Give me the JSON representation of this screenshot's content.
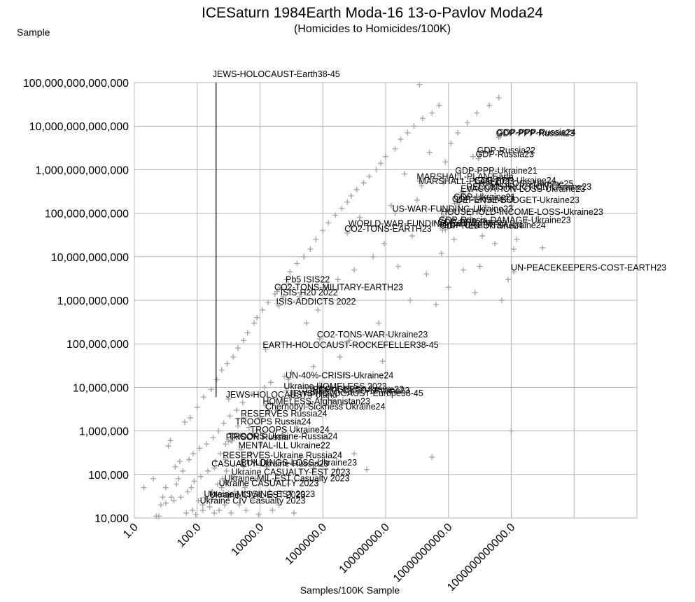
{
  "chart_data": {
    "type": "scatter",
    "title": "ICESaturn 1984Earth Moda-16 13-o-Pavlov Moda24",
    "subtitle": "(Homicides to Homicides/100K)",
    "ylabel": "Sample",
    "xlabel": "Samples/100K Sample",
    "x_scale": "log",
    "y_scale": "log",
    "xlim": [
      1,
      1e+16
    ],
    "ylim": [
      10000.0,
      100000000000000.0
    ],
    "x_tick_labels": [
      "1.0",
      "100.0",
      "10000.0",
      "1000000.0",
      "100000000.0",
      "10000000000.0",
      "1000000000000.0"
    ],
    "x_tick_values": [
      1,
      100,
      10000,
      1000000,
      100000000,
      10000000000,
      1000000000000
    ],
    "y_tick_labels": [
      "10,000",
      "100,000",
      "1,000,000",
      "10,000,000",
      "100,000,000",
      "1,000,000,000",
      "10,000,000,000",
      "100,000,000,000",
      "1,000,000,000,000",
      "10,000,000,000,000",
      "100,000,000,000,000"
    ],
    "y_tick_values": [
      10000.0,
      100000.0,
      1000000.0,
      10000000.0,
      100000000.0,
      1000000000.0,
      10000000000.0,
      100000000000.0,
      1000000000000.0,
      10000000000000.0,
      100000000000000.0
    ],
    "grid": true,
    "marker": "plus",
    "marker_color": "#a6a6a6",
    "annotation_line": {
      "label": "JEWS-HOLOCAUST-Earth38-45",
      "x": 400,
      "y_from": 6000000,
      "y_to": 100000000000000
    },
    "labeled_points": [
      {
        "label": "GDP-PPP-Russia23",
        "x": 400000000000.0,
        "y": 5500000000000.0
      },
      {
        "label": "GDP-PPP-Russia24",
        "x": 430000000000.0,
        "y": 5800000000000.0
      },
      {
        "label": "GDP-Russia22",
        "x": 100000000000.0,
        "y": 2200000000000.0
      },
      {
        "label": "GDP-Russia23",
        "x": 90000000000.0,
        "y": 1800000000000.0
      },
      {
        "label": "GDP-PPP-Ukraine21",
        "x": 20000000000.0,
        "y": 750000000000.0
      },
      {
        "label": "MARSHALL-PLAN-Earth",
        "x": 1200000000.0,
        "y": 550000000000.0
      },
      {
        "label": "MARSHALL-PLAN-2023",
        "x": 1400000000.0,
        "y": 430000000000.0
      },
      {
        "label": "GDP-PPP-Ukraine24",
        "x": 80000000000.0,
        "y": 450000000000.0
      },
      {
        "label": "TOTAL-LOSS-Ukraine25",
        "x": 100000000000.0,
        "y": 380000000000.0
      },
      {
        "label": "RECONSTRUCTION-Ukraine23",
        "x": 45000000000.0,
        "y": 320000000000.0
      },
      {
        "label": "EVACUATION-LOSS-Ukraine23",
        "x": 30000000000.0,
        "y": 290000000000.0
      },
      {
        "label": "GDP-Ukraine21",
        "x": 18000000000.0,
        "y": 190000000000.0
      },
      {
        "label": "GDP-Ukraine23",
        "x": 16000000000.0,
        "y": 170000000000.0
      },
      {
        "label": "DEFENSE-BUDGET-Ukraine23",
        "x": 22000000000.0,
        "y": 160000000000.0
      },
      {
        "label": "US-WAR-FUNDING-Ukraine23",
        "x": 200000000.0,
        "y": 100000000000.0
      },
      {
        "label": "HOUSEHOLD-INCOME-LOSS-Ukraine23",
        "x": 7000000000.0,
        "y": 85000000000.0
      },
      {
        "label": "GDP-Russia-DAMAGE-Ukraine23",
        "x": 6000000000.0,
        "y": 55000000000.0
      },
      {
        "label": "GDP-PPP-Russia",
        "x": 5500000000.0,
        "y": 50000000000.0
      },
      {
        "label": "WORLD-WAR-FUNDING-Earth42-45",
        "x": 8000000.0,
        "y": 46000000000.0
      },
      {
        "label": "GDP-CREDITS-Ukraine24",
        "x": 8000000000.0,
        "y": 42000000000.0
      },
      {
        "label": "GDP-RED-Ukraine24",
        "x": 6500000000.0,
        "y": 41000000000.0
      },
      {
        "label": "CO2-TONS-EARTH23",
        "x": 6000000.0,
        "y": 35000000000.0
      },
      {
        "label": "UN-PEACEKEEPERS-COST-EARTH23",
        "x": 1200000000000.0,
        "y": 4500000000.0
      },
      {
        "label": "Pb5 ISIS22",
        "x": 80000.0,
        "y": 2400000000.0
      },
      {
        "label": "CO2-TONS-MILITARY-EARTH23",
        "x": 35000.0,
        "y": 1600000000.0
      },
      {
        "label": "ISIS-H20 2022",
        "x": 55000.0,
        "y": 1200000000.0
      },
      {
        "label": "ISIS-ADDICTS 2022",
        "x": 40000.0,
        "y": 750000000.0
      },
      {
        "label": "CO2-TONS-WAR-Ukraine23",
        "x": 800000.0,
        "y": 130000000.0
      },
      {
        "label": "EARTH-HOLOCAUST-ROCKEFELLER38-45",
        "x": 15000.0,
        "y": 75000000.0
      },
      {
        "label": "UN-40%-CRISIS-Ukraine24",
        "x": 80000.0,
        "y": 15000000.0
      },
      {
        "label": "Ukraine HOMELESS 2023",
        "x": 70000.0,
        "y": 8500000.0
      },
      {
        "label": "JEWS-HOLOCAUST-Europe38-45",
        "x": 100000.0,
        "y": 5800000.0
      },
      {
        "label": "REFUGEES-Ukraine22",
        "x": 600000.0,
        "y": 7200000.0
      },
      {
        "label": "UNEMPLOYED-Ukraine23",
        "x": 350000.0,
        "y": 6800000.0
      },
      {
        "label": "JEWS-HOLOCAUST-Poland",
        "x": 1000.0,
        "y": 5400000.0
      },
      {
        "label": "HOMELESS-Afghanistan23",
        "x": 15000.0,
        "y": 3800000.0
      },
      {
        "label": "Chernobyl-Sickness Ukraine24",
        "x": 18000.0,
        "y": 2900000.0
      },
      {
        "label": "RESERVES Russia24",
        "x": 3000.0,
        "y": 2000000.0
      },
      {
        "label": "TROOPS Russia24",
        "x": 2000.0,
        "y": 1300000.0
      },
      {
        "label": "TROOPS Ukraine24",
        "x": 6000.0,
        "y": 850000.0
      },
      {
        "label": "PRISON Russia",
        "x": 1000.0,
        "y": 580000.0
      },
      {
        "label": "TROOPS-Ukraine-Russia24",
        "x": 1200.0,
        "y": 600000.0
      },
      {
        "label": "MENTAL-ILL Ukraine22",
        "x": 2500.0,
        "y": 370000.0
      },
      {
        "label": "RESERVES-Ukraine Russia24",
        "x": 800.0,
        "y": 220000.0
      },
      {
        "label": "CASUALTY-Ukraine-Russia23",
        "x": 350.0,
        "y": 140000.0
      },
      {
        "label": "BUILDINGS-LOSS-Ukraine23",
        "x": 3000.0,
        "y": 150000.0
      },
      {
        "label": "Ukraine CASUALTY-EST 2023",
        "x": 1500.0,
        "y": 90000.0
      },
      {
        "label": "Ukraine MIL-EST Casualty 2023",
        "x": 900.0,
        "y": 65000.0
      },
      {
        "label": "Ukraine CASUALTY 2023",
        "x": 600.0,
        "y": 50000.0
      },
      {
        "label": "Ukraine MISSING-EST 2023",
        "x": 200.0,
        "y": 28000.0
      },
      {
        "label": "Ukraine CIVIL-EST 2023",
        "x": 300.0,
        "y": 27000.0
      },
      {
        "label": "Ukraine CIV Casualty 2023",
        "x": 150.0,
        "y": 20000.0
      }
    ],
    "unlabeled_points": [
      {
        "x": 2,
        "y": 50000.0
      },
      {
        "x": 4,
        "y": 80000.0
      },
      {
        "x": 5,
        "y": 11000.0
      },
      {
        "x": 6,
        "y": 11000.0
      },
      {
        "x": 7,
        "y": 20000.0
      },
      {
        "x": 8,
        "y": 30000.0
      },
      {
        "x": 10,
        "y": 50000.0
      },
      {
        "x": 10,
        "y": 22000.0
      },
      {
        "x": 12,
        "y": 450000.0
      },
      {
        "x": 14,
        "y": 600000.0
      },
      {
        "x": 15,
        "y": 30000.0
      },
      {
        "x": 18,
        "y": 25000.0
      },
      {
        "x": 20,
        "y": 150000.0
      },
      {
        "x": 22,
        "y": 60000.0
      },
      {
        "x": 25,
        "y": 80000.0
      },
      {
        "x": 28,
        "y": 200000.0
      },
      {
        "x": 30,
        "y": 30000.0
      },
      {
        "x": 35,
        "y": 120000.0
      },
      {
        "x": 40,
        "y": 1600000.0
      },
      {
        "x": 45,
        "y": 13000.0
      },
      {
        "x": 50,
        "y": 40000.0
      },
      {
        "x": 55,
        "y": 220000.0
      },
      {
        "x": 60,
        "y": 2000000.0
      },
      {
        "x": 65,
        "y": 50000.0
      },
      {
        "x": 70,
        "y": 15000.0
      },
      {
        "x": 75,
        "y": 300000.0
      },
      {
        "x": 80,
        "y": 70000.0
      },
      {
        "x": 90,
        "y": 12000.0
      },
      {
        "x": 100,
        "y": 3500000.0
      },
      {
        "x": 110,
        "y": 25000.0
      },
      {
        "x": 120,
        "y": 400000.0
      },
      {
        "x": 130,
        "y": 90000.0
      },
      {
        "x": 150,
        "y": 15000.0
      },
      {
        "x": 160,
        "y": 6000000.0
      },
      {
        "x": 180,
        "y": 30000.0
      },
      {
        "x": 200,
        "y": 500000.0
      },
      {
        "x": 220,
        "y": 120000.0
      },
      {
        "x": 250,
        "y": 18000.0
      },
      {
        "x": 280,
        "y": 9000000.0
      },
      {
        "x": 300,
        "y": 40000.0
      },
      {
        "x": 320,
        "y": 700000.0
      },
      {
        "x": 350,
        "y": 13000.0
      },
      {
        "x": 380,
        "y": 200000.0
      },
      {
        "x": 420,
        "y": 15000000.0
      },
      {
        "x": 450,
        "y": 60000.0
      },
      {
        "x": 480,
        "y": 1000000.0
      },
      {
        "x": 500,
        "y": 15000.0
      },
      {
        "x": 550,
        "y": 300000.0
      },
      {
        "x": 600,
        "y": 25000000.0
      },
      {
        "x": 650,
        "y": 80000.0
      },
      {
        "x": 700,
        "y": 1500000.0
      },
      {
        "x": 750,
        "y": 20000.0
      },
      {
        "x": 800,
        "y": 500000.0
      },
      {
        "x": 850,
        "y": 120000.0
      },
      {
        "x": 900,
        "y": 35000000.0
      },
      {
        "x": 1000,
        "y": 30000.0
      },
      {
        "x": 1100,
        "y": 2200000.0
      },
      {
        "x": 1200,
        "y": 13000.0
      },
      {
        "x": 1300,
        "y": 600000.0
      },
      {
        "x": 1400,
        "y": 50000000.0
      },
      {
        "x": 1500,
        "y": 160000.0
      },
      {
        "x": 1600,
        "y": 40000.0
      },
      {
        "x": 1800,
        "y": 3000000.0
      },
      {
        "x": 2000,
        "y": 80000000.0
      },
      {
        "x": 2200,
        "y": 20000.0
      },
      {
        "x": 2400,
        "y": 800000.0
      },
      {
        "x": 2600,
        "y": 200000.0
      },
      {
        "x": 2800,
        "y": 4500000.0
      },
      {
        "x": 3000,
        "y": 120000000.0
      },
      {
        "x": 3300,
        "y": 50000.0
      },
      {
        "x": 3600,
        "y": 15000.0
      },
      {
        "x": 4000,
        "y": 180000000.0
      },
      {
        "x": 4500,
        "y": 1200000.0
      },
      {
        "x": 5000,
        "y": 300000.0
      },
      {
        "x": 5500,
        "y": 7000000.0
      },
      {
        "x": 6000,
        "y": 25000.0
      },
      {
        "x": 6500,
        "y": 300000000.0
      },
      {
        "x": 7000,
        "y": 80000.0
      },
      {
        "x": 8000,
        "y": 400000000.0
      },
      {
        "x": 9000,
        "y": 12000.0
      },
      {
        "x": 10000.0,
        "y": 2000000.0
      },
      {
        "x": 11000.0,
        "y": 500000.0
      },
      {
        "x": 12000.0,
        "y": 600000000.0
      },
      {
        "x": 14000.0,
        "y": 10000000.0
      },
      {
        "x": 16000.0,
        "y": 150000.0
      },
      {
        "x": 18000.0,
        "y": 900000000.0
      },
      {
        "x": 20000.0,
        "y": 40000.0
      },
      {
        "x": 22000.0,
        "y": 13000000.0
      },
      {
        "x": 25000.0,
        "y": 15000.0
      },
      {
        "x": 30000.0,
        "y": 1400000000.0
      },
      {
        "x": 35000.0,
        "y": 3000000.0
      },
      {
        "x": 40000.0,
        "y": 20000.0
      },
      {
        "x": 45000.0,
        "y": 2000000000.0
      },
      {
        "x": 50000.0,
        "y": 800000.0
      },
      {
        "x": 60000.0,
        "y": 18000000.0
      },
      {
        "x": 70000.0,
        "y": 3000000000.0
      },
      {
        "x": 80000.0,
        "y": 60000.0
      },
      {
        "x": 90000.0,
        "y": 4500000000.0
      },
      {
        "x": 100000.0,
        "y": 22000000.0
      },
      {
        "x": 120000.0,
        "y": 13000.0
      },
      {
        "x": 150000.0,
        "y": 7000000000.0
      },
      {
        "x": 180000.0,
        "y": 1200000000.0
      },
      {
        "x": 200000.0,
        "y": 250000.0
      },
      {
        "x": 250000.0,
        "y": 10000000000.0
      },
      {
        "x": 300000.0,
        "y": 300000000.0
      },
      {
        "x": 350000.0,
        "y": 4000000.0
      },
      {
        "x": 400000.0,
        "y": 15000000000.0
      },
      {
        "x": 500000.0,
        "y": 140000.0
      },
      {
        "x": 600000.0,
        "y": 25000000000.0
      },
      {
        "x": 700000.0,
        "y": 600000000.0
      },
      {
        "x": 800000.0,
        "y": 12000000.0
      },
      {
        "x": 1000000.0,
        "y": 40000000000.0
      },
      {
        "x": 1200000.0,
        "y": 2000000000.0
      },
      {
        "x": 1500000.0,
        "y": 60000000000.0
      },
      {
        "x": 2000000.0,
        "y": 100000.0
      },
      {
        "x": 2500000.0,
        "y": 90000000000.0
      },
      {
        "x": 3000000.0,
        "y": 3000000000.0
      },
      {
        "x": 3500000.0,
        "y": 50000000.0
      },
      {
        "x": 4000000.0,
        "y": 130000000000.0
      },
      {
        "x": 5000000.0,
        "y": 20000000.0
      },
      {
        "x": 6000000.0,
        "y": 180000000000.0
      },
      {
        "x": 7000000.0,
        "y": 120000000.0
      },
      {
        "x": 8000000.0,
        "y": 250000000000.0
      },
      {
        "x": 10000000.0,
        "y": 5000000000.0
      },
      {
        "x": 12000000.0,
        "y": 350000000000.0
      },
      {
        "x": 15000000.0,
        "y": 80000000000.0
      },
      {
        "x": 20000000.0,
        "y": 500000000000.0
      },
      {
        "x": 25000000.0,
        "y": 130000.0
      },
      {
        "x": 30000000.0,
        "y": 700000000000.0
      },
      {
        "x": 40000000.0,
        "y": 10000000000.0
      },
      {
        "x": 50000000.0,
        "y": 1000000000000.0
      },
      {
        "x": 60000000.0,
        "y": 300000000.0
      },
      {
        "x": 70000000.0,
        "y": 1400000000000.0
      },
      {
        "x": 80000000.0,
        "y": 40000000.0
      },
      {
        "x": 90000000.0,
        "y": 20000000000.0
      },
      {
        "x": 100000000.0,
        "y": 2000000000000.0
      },
      {
        "x": 150000000.0,
        "y": 150000000000.0
      },
      {
        "x": 200000000.0,
        "y": 3000000000000.0
      },
      {
        "x": 250000000.0,
        "y": 6000000000.0
      },
      {
        "x": 300000000.0,
        "y": 5000000000000.0
      },
      {
        "x": 400000000.0,
        "y": 800000000000.0
      },
      {
        "x": 500000000.0,
        "y": 7000000000000.0
      },
      {
        "x": 600000000.0,
        "y": 1000000000.0
      },
      {
        "x": 700000000.0,
        "y": 30000000000.0
      },
      {
        "x": 800000000.0,
        "y": 10000000000000.0
      },
      {
        "x": 1000000000.0,
        "y": 200000000000.0
      },
      {
        "x": 1200000000.0,
        "y": 90000000000000.0
      },
      {
        "x": 1500000000.0,
        "y": 15000000000000.0
      },
      {
        "x": 2000000000.0,
        "y": 4000000000.0
      },
      {
        "x": 2500000000.0,
        "y": 2500000000000.0
      },
      {
        "x": 3000000000.0,
        "y": 20000000000000.0
      },
      {
        "x": 3500000000.0,
        "y": 60000000000.0
      },
      {
        "x": 4000000000.0,
        "y": 800000000.0
      },
      {
        "x": 5000000000.0,
        "y": 30000000000000.0
      },
      {
        "x": 6000000000.0,
        "y": 12000000000.0
      },
      {
        "x": 7000000000.0,
        "y": 500000000000.0
      },
      {
        "x": 8000000000.0,
        "y": 1500000000000.0
      },
      {
        "x": 10000000000.0,
        "y": 2000000000.0
      },
      {
        "x": 12000000000.0,
        "y": 4000000000000.0
      },
      {
        "x": 15000000000.0,
        "y": 25000000000.0
      },
      {
        "x": 20000000000.0,
        "y": 7000000000000.0
      },
      {
        "x": 25000000000.0,
        "y": 300000000000.0
      },
      {
        "x": 30000000000.0,
        "y": 5000000000.0
      },
      {
        "x": 40000000000.0,
        "y": 12000000000000.0
      },
      {
        "x": 50000000000.0,
        "y": 80000000000.0
      },
      {
        "x": 60000000000.0,
        "y": 2000000000000.0
      },
      {
        "x": 70000000000.0,
        "y": 1500000000.0
      },
      {
        "x": 80000000000.0,
        "y": 20000000000000.0
      },
      {
        "x": 100000000000.0,
        "y": 6000000000.0
      },
      {
        "x": 120000000000.0,
        "y": 30000000000.0
      },
      {
        "x": 150000000000.0,
        "y": 150000000000.0
      },
      {
        "x": 200000000000.0,
        "y": 30000000000000.0
      },
      {
        "x": 250000000000.0,
        "y": 800000000000.0
      },
      {
        "x": 300000000000.0,
        "y": 20000000000.0
      },
      {
        "x": 400000000000.0,
        "y": 45000000000000.0
      },
      {
        "x": 500000000000.0,
        "y": 1000000000.0
      },
      {
        "x": 600000000000.0,
        "y": 50000000000.0
      },
      {
        "x": 700000000000.0,
        "y": 400000000000.0
      },
      {
        "x": 800000000000.0,
        "y": 3000000000.0
      },
      {
        "x": 1000000000000.0,
        "y": 150000000000.0
      },
      {
        "x": 1200000000000.0,
        "y": 15000000000.0
      },
      {
        "x": 1500000000000.0,
        "y": 25000000000.0
      },
      {
        "x": 3000000000000.0,
        "y": 70000000000.0
      },
      {
        "x": 10000000000000.0,
        "y": 16000000000.0
      },
      {
        "x": 1000000000000.0,
        "y": 1000000.0
      },
      {
        "x": 3000000000.0,
        "y": 250000.0
      },
      {
        "x": 10000000.0,
        "y": 300000.0
      },
      {
        "x": 3000000.0,
        "y": 130000.0
      },
      {
        "x": 500000.0,
        "y": 30000000.0
      },
      {
        "x": 2000000.0,
        "y": 5000000.0
      },
      {
        "x": 4000000.0,
        "y": 4000000.0
      }
    ]
  }
}
